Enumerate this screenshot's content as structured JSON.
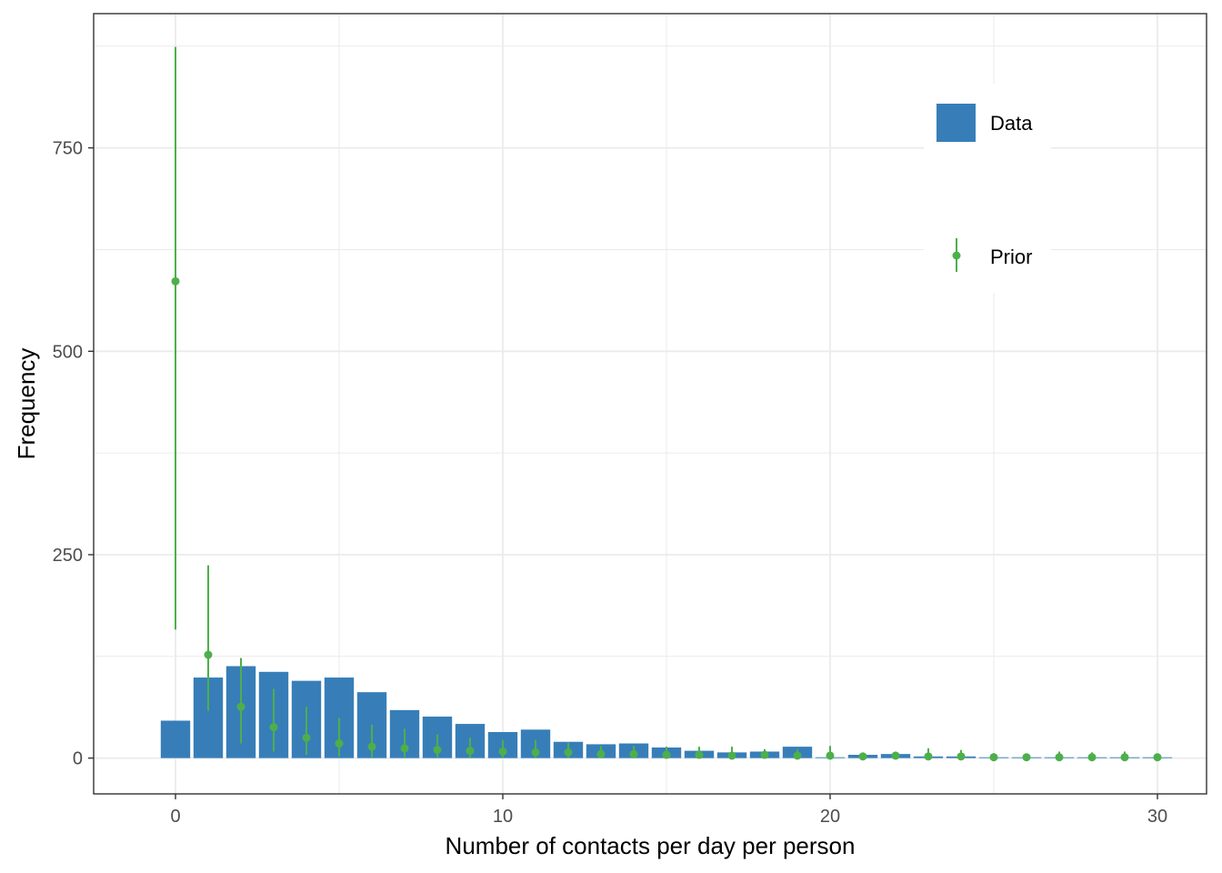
{
  "chart_data": {
    "type": "bar",
    "title": "",
    "xlabel": "Number of contacts per day per person",
    "ylabel": "Frequency",
    "xlim": [
      -2.5,
      31.5
    ],
    "ylim": [
      -44,
      915
    ],
    "x_ticks": [
      "0",
      "10",
      "20",
      "30"
    ],
    "y_ticks": [
      "0",
      "250",
      "500",
      "750"
    ],
    "grid": true,
    "legend_position": "top-right",
    "colors": {
      "data": "#377EB8",
      "prior": "#4DAF4A"
    },
    "series": [
      {
        "name": "Data",
        "type": "bar",
        "x": [
          0,
          1,
          2,
          3,
          4,
          5,
          6,
          7,
          8,
          9,
          10,
          11,
          12,
          13,
          14,
          15,
          16,
          17,
          18,
          19,
          20,
          21,
          22,
          23,
          24,
          25,
          26,
          27,
          28,
          29,
          30
        ],
        "values": [
          46,
          99,
          113,
          106,
          95,
          99,
          81,
          59,
          51,
          42,
          32,
          35,
          20,
          17,
          18,
          13,
          9,
          7,
          8,
          14,
          1,
          4,
          5,
          2,
          2,
          1,
          1,
          1,
          1,
          1,
          1
        ]
      },
      {
        "name": "Prior",
        "type": "pointrange",
        "x": [
          0,
          1,
          2,
          3,
          4,
          5,
          6,
          7,
          8,
          9,
          10,
          11,
          12,
          13,
          14,
          15,
          16,
          17,
          18,
          19,
          20,
          21,
          22,
          23,
          24,
          25,
          26,
          27,
          28,
          29,
          30
        ],
        "y": [
          586,
          127,
          63,
          38,
          25,
          18,
          14,
          12,
          10,
          9,
          8,
          7,
          7,
          5,
          5,
          4,
          4,
          3,
          4,
          3,
          3,
          2,
          3,
          2,
          2,
          1,
          1,
          1,
          1,
          1,
          1
        ],
        "lower": [
          158,
          58,
          18,
          8,
          4,
          2,
          1,
          1,
          1,
          0,
          0,
          0,
          0,
          0,
          0,
          0,
          0,
          0,
          0,
          0,
          0,
          0,
          0,
          0,
          0,
          0,
          0,
          0,
          0,
          0,
          0
        ],
        "upper": [
          874,
          237,
          123,
          85,
          63,
          49,
          41,
          36,
          29,
          25,
          22,
          22,
          19,
          15,
          15,
          14,
          14,
          14,
          11,
          11,
          15,
          7,
          8,
          12,
          10,
          6,
          5,
          8,
          7,
          8,
          5
        ]
      }
    ]
  }
}
